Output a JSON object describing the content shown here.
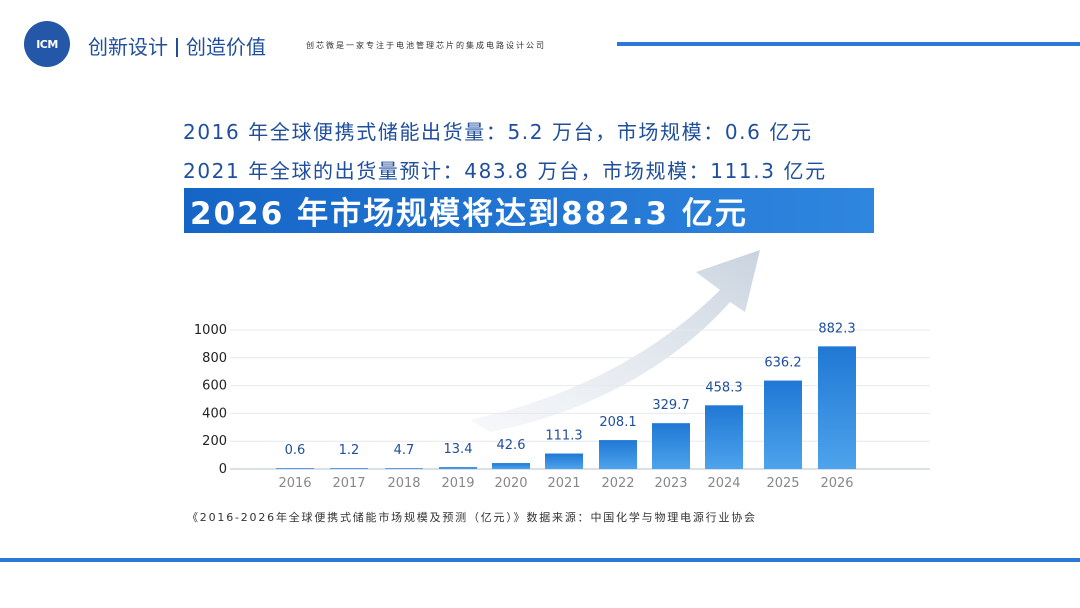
{
  "header": {
    "logo_text": "ICM",
    "slogan_left": "创新设计",
    "slogan_right": "创造价值",
    "tagline": "创芯微是一家专注于电池管理芯片的集成电路设计公司",
    "accent_color": "#2b78d8"
  },
  "stats": {
    "line1": "2016 年全球便携式储能出货量：5.2 万台，市场规模：0.6 亿元",
    "line2": "2021 年全球的出货量预计：483.8 万台，市场规模：111.3 亿元",
    "banner": "2026 年市场规模将达到882.3 亿元"
  },
  "chart_data": {
    "type": "bar",
    "title": "",
    "xlabel": "",
    "ylabel": "",
    "ylim": [
      0,
      1000
    ],
    "yticks": [
      "0",
      "200",
      "400",
      "600",
      "800",
      "1000"
    ],
    "categories": [
      "2016",
      "2017",
      "2018",
      "2019",
      "2020",
      "2021",
      "2022",
      "2023",
      "2024",
      "2025",
      "2026"
    ],
    "values": [
      0.6,
      1.2,
      4.7,
      13.4,
      42.6,
      111.3,
      208.1,
      329.7,
      458.3,
      636.2,
      882.3
    ],
    "data_labels": [
      "0.6",
      "1.2",
      "4.7",
      "13.4",
      "42.6",
      "111.3",
      "208.1",
      "329.7",
      "458.3",
      "636.2",
      "882.3"
    ],
    "grid": true,
    "bar_color": "#1f78d4"
  },
  "source_note": "《2016-2026年全球便携式储能市场规模及预测（亿元）》数据来源：中国化学与物理电源行业协会"
}
